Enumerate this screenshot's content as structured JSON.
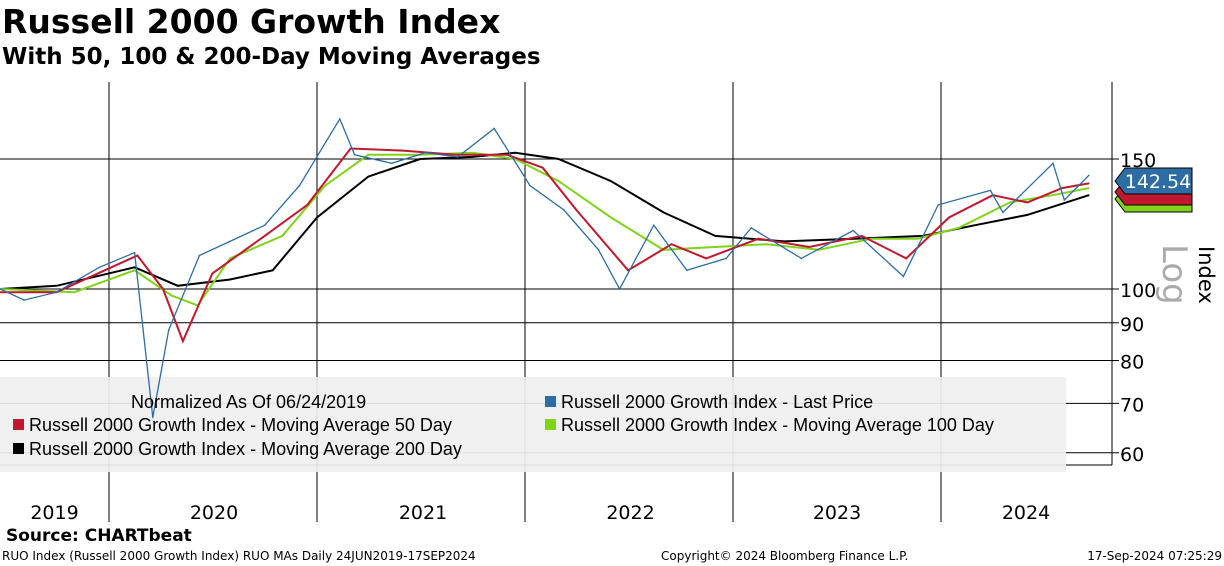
{
  "title": "Russell 2000 Growth Index",
  "subtitle": "With 50, 100 & 200-Day Moving Averages",
  "source": "Source: CHARTbeat",
  "footer": {
    "left": "RUO Index (Russell 2000 Growth Index) RUO MAs  Daily 24JUN2019-17SEP2024",
    "center": "Copyright© 2024 Bloomberg Finance L.P.",
    "right": "17-Sep-2024 07:25:29"
  },
  "chart_data": {
    "type": "line",
    "yscale": "log",
    "ylabel": "Index",
    "scale_label": "Log",
    "ylim": [
      57.8,
      190
    ],
    "yticks": [
      60,
      70,
      80,
      90,
      100,
      150
    ],
    "xlim": [
      "2019-06-24",
      "2024-09-17"
    ],
    "xtick_labels": [
      "2019",
      "2020",
      "2021",
      "2022",
      "2023",
      "2024"
    ],
    "grid": true,
    "legend_placement": "bottom-left",
    "legend_note": "Normalized As Of 06/24/2019",
    "last_value_label": "142.54",
    "series": [
      {
        "name": "Russell 2000 Growth Index - Last Price",
        "color": "#2e6da4",
        "x": [
          "2019-06-24",
          "2019-08-05",
          "2019-10-01",
          "2019-12-15",
          "2020-02-15",
          "2020-03-18",
          "2020-04-15",
          "2020-06-08",
          "2020-08-01",
          "2020-10-01",
          "2020-12-01",
          "2021-02-10",
          "2021-03-08",
          "2021-05-12",
          "2021-07-10",
          "2021-09-05",
          "2021-11-08",
          "2022-01-10",
          "2022-03-10",
          "2022-05-10",
          "2022-06-16",
          "2022-08-15",
          "2022-10-12",
          "2022-12-20",
          "2023-02-02",
          "2023-05-01",
          "2023-07-31",
          "2023-10-27",
          "2023-12-27",
          "2024-03-28",
          "2024-04-19",
          "2024-05-20",
          "2024-07-16",
          "2024-08-05",
          "2024-09-17"
        ],
        "y": [
          100,
          96.6,
          99,
          107,
          112,
          67,
          88,
          111,
          116,
          122,
          138,
          170,
          152,
          148,
          153,
          151,
          165,
          138,
          128,
          113,
          100,
          122,
          106,
          110,
          121,
          110,
          120,
          104,
          130,
          136,
          127,
          134,
          148,
          132,
          142.54
        ]
      },
      {
        "name": "Russell 2000 Growth Index - Moving Average 50 Day",
        "color": "#c0182f",
        "x": [
          "2019-06-24",
          "2019-10-01",
          "2020-02-20",
          "2020-04-05",
          "2020-05-10",
          "2020-07-01",
          "2020-10-01",
          "2020-12-15",
          "2021-03-01",
          "2021-06-01",
          "2021-09-01",
          "2021-12-01",
          "2022-02-01",
          "2022-04-01",
          "2022-07-01",
          "2022-09-15",
          "2022-11-15",
          "2023-02-15",
          "2023-05-15",
          "2023-08-15",
          "2023-11-01",
          "2024-01-15",
          "2024-04-01",
          "2024-06-01",
          "2024-08-01",
          "2024-09-17"
        ],
        "y": [
          99,
          99,
          111,
          100,
          85,
          105,
          118,
          130,
          155,
          154,
          152,
          152,
          146,
          128,
          106,
          115,
          110,
          117,
          114,
          118,
          110,
          125,
          134,
          131,
          137,
          139
        ]
      },
      {
        "name": "Russell 2000 Growth Index - Moving Average 100 Day",
        "color": "#7fd31a",
        "x": [
          "2019-06-24",
          "2019-11-01",
          "2020-02-15",
          "2020-04-20",
          "2020-06-05",
          "2020-08-01",
          "2020-11-01",
          "2021-01-15",
          "2021-04-01",
          "2021-07-01",
          "2021-10-01",
          "2021-12-15",
          "2022-03-01",
          "2022-06-01",
          "2022-09-01",
          "2022-12-01",
          "2023-03-01",
          "2023-06-01",
          "2023-09-01",
          "2023-11-20",
          "2024-02-01",
          "2024-05-01",
          "2024-07-15",
          "2024-09-17"
        ],
        "y": [
          100,
          99,
          106,
          98,
          95,
          110,
          118,
          138,
          152,
          152,
          153,
          150,
          140,
          125,
          113,
          114,
          115,
          113,
          117,
          117,
          121,
          131,
          134,
          137
        ]
      },
      {
        "name": "Russell 2000 Growth Index - Moving Average 200 Day",
        "color": "#000000",
        "x": [
          "2019-06-24",
          "2019-10-01",
          "2020-02-15",
          "2020-05-01",
          "2020-08-01",
          "2020-10-15",
          "2021-01-01",
          "2021-04-01",
          "2021-07-01",
          "2021-10-01",
          "2021-12-15",
          "2022-03-01",
          "2022-06-01",
          "2022-09-01",
          "2022-12-01",
          "2023-04-01",
          "2023-08-01",
          "2023-12-01",
          "2024-03-01",
          "2024-06-01",
          "2024-09-17"
        ],
        "y": [
          100,
          101,
          107,
          101,
          103,
          106,
          125,
          142,
          150,
          151,
          153,
          150,
          140,
          127,
          118,
          116,
          117,
          118,
          122,
          126,
          134
        ]
      }
    ]
  }
}
